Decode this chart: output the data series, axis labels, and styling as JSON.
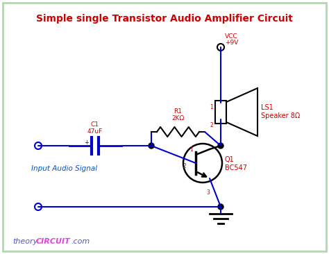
{
  "title": "Simple single Transistor Audio Amplifier Circuit",
  "title_color": "#cc0000",
  "bg_color": "#ffffff",
  "border_color": "#aaddaa",
  "wire_color": "#0000cc",
  "component_color": "#000000",
  "label_color": "#cc0000",
  "input_label": "Input Audio Signal",
  "input_label_color": "#0055cc",
  "vcc_label_top": "VCC",
  "vcc_label_bot": "+9V",
  "vcc_label_color": "#cc0000",
  "r1_label": "R1\n2KΩ",
  "c1_label": "C1\n47uF",
  "q1_label": "Q1\nBC547",
  "ls1_label": "LS1\nSpeaker 8Ω",
  "footer_theory": "theory",
  "footer_circuit": "CIRCUIT",
  "footer_com": ".com",
  "footer_color_theory": "#5555cc",
  "footer_color_circuit": "#dd44dd",
  "footer_color_com": "#5555cc"
}
